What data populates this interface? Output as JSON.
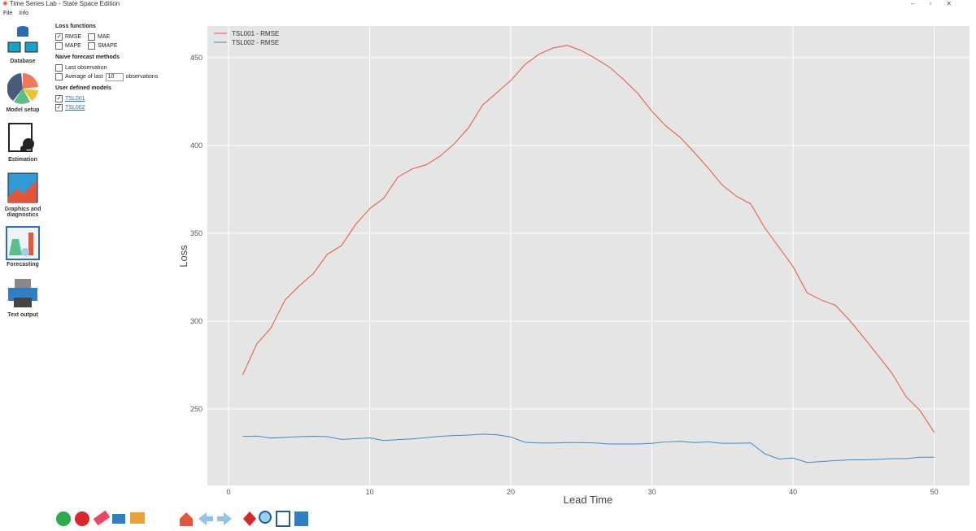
{
  "window": {
    "title": "Time Series Lab - State Space Edition",
    "menu": [
      "File",
      "Info"
    ]
  },
  "sidebar": [
    "Database",
    "Model setup",
    "Estimation",
    "Graphics and diagnostics",
    "Forecasting",
    "Text output"
  ],
  "options": {
    "loss_functions": {
      "title": "Loss functions",
      "items": [
        {
          "label": "RMSE",
          "checked": true
        },
        {
          "label": "MAE",
          "checked": false
        },
        {
          "label": "MAPE",
          "checked": false
        },
        {
          "label": "SMAPE",
          "checked": false
        }
      ]
    },
    "naive": {
      "title": "Naive forecast methods",
      "last": {
        "label": "Last observation",
        "checked": false
      },
      "average": {
        "label": "Average of last",
        "value": 10,
        "suffix": "observations",
        "checked": false
      }
    },
    "user_models": {
      "title": "User defined models",
      "items": [
        {
          "label": "TSL001",
          "checked": true
        },
        {
          "label": "TSL002",
          "checked": true
        }
      ]
    }
  },
  "chart_data": {
    "type": "line",
    "x_label": "Lead Time",
    "y_label": "Loss",
    "x": [
      1,
      2,
      3,
      4,
      5,
      6,
      7,
      8,
      9,
      10,
      11,
      12,
      13,
      14,
      15,
      16,
      17,
      18,
      19,
      20,
      21,
      22,
      23,
      24,
      25,
      26,
      27,
      28,
      29,
      30,
      31,
      32,
      33,
      34,
      35,
      36,
      37,
      38,
      39,
      40,
      41,
      42,
      43,
      44,
      45,
      46,
      47,
      48,
      49,
      50
    ],
    "series": [
      {
        "name": "TSL001 - RMSE",
        "color": "#e4553a",
        "values": [
          269.4,
          287,
          296,
          312,
          320,
          327,
          338,
          343,
          355,
          364,
          370,
          382,
          386.6,
          389,
          394,
          401,
          410,
          423,
          430,
          437,
          446,
          452,
          455.5,
          457,
          454,
          449.5,
          444.5,
          437.5,
          429.6,
          419.4,
          411,
          404.6,
          396,
          387,
          377.3,
          371,
          366.7,
          353,
          342,
          331,
          316,
          312,
          309,
          300.5,
          290.7,
          280.6,
          270.4,
          257,
          249,
          236.6
        ]
      },
      {
        "name": "TSL002 - RMSE",
        "color": "#3a8cc4",
        "values": [
          234.3,
          234.5,
          233.4,
          233.8,
          234.2,
          234.4,
          234.2,
          232.6,
          233,
          233.5,
          232,
          232.5,
          232.9,
          233.6,
          234.4,
          234.8,
          235.1,
          235.6,
          235.3,
          234,
          231,
          230.6,
          230.6,
          230.8,
          230.8,
          230.6,
          230,
          230,
          230,
          230.4,
          231.2,
          231.5,
          230.8,
          231.2,
          230.4,
          230.4,
          230.6,
          224.4,
          221.5,
          222,
          219.5,
          220,
          220.6,
          221,
          221,
          221.3,
          221.7,
          221.7,
          222.5,
          222.5
        ]
      }
    ],
    "xlim": [
      -1.5,
      52.5
    ],
    "ylim": [
      206.4,
      468
    ],
    "xticks": [
      0,
      10,
      20,
      30,
      40,
      50
    ],
    "yticks": [
      250,
      300,
      350,
      400,
      450
    ],
    "grid": true,
    "legend": "upper left",
    "background": "#e5e5e5"
  }
}
